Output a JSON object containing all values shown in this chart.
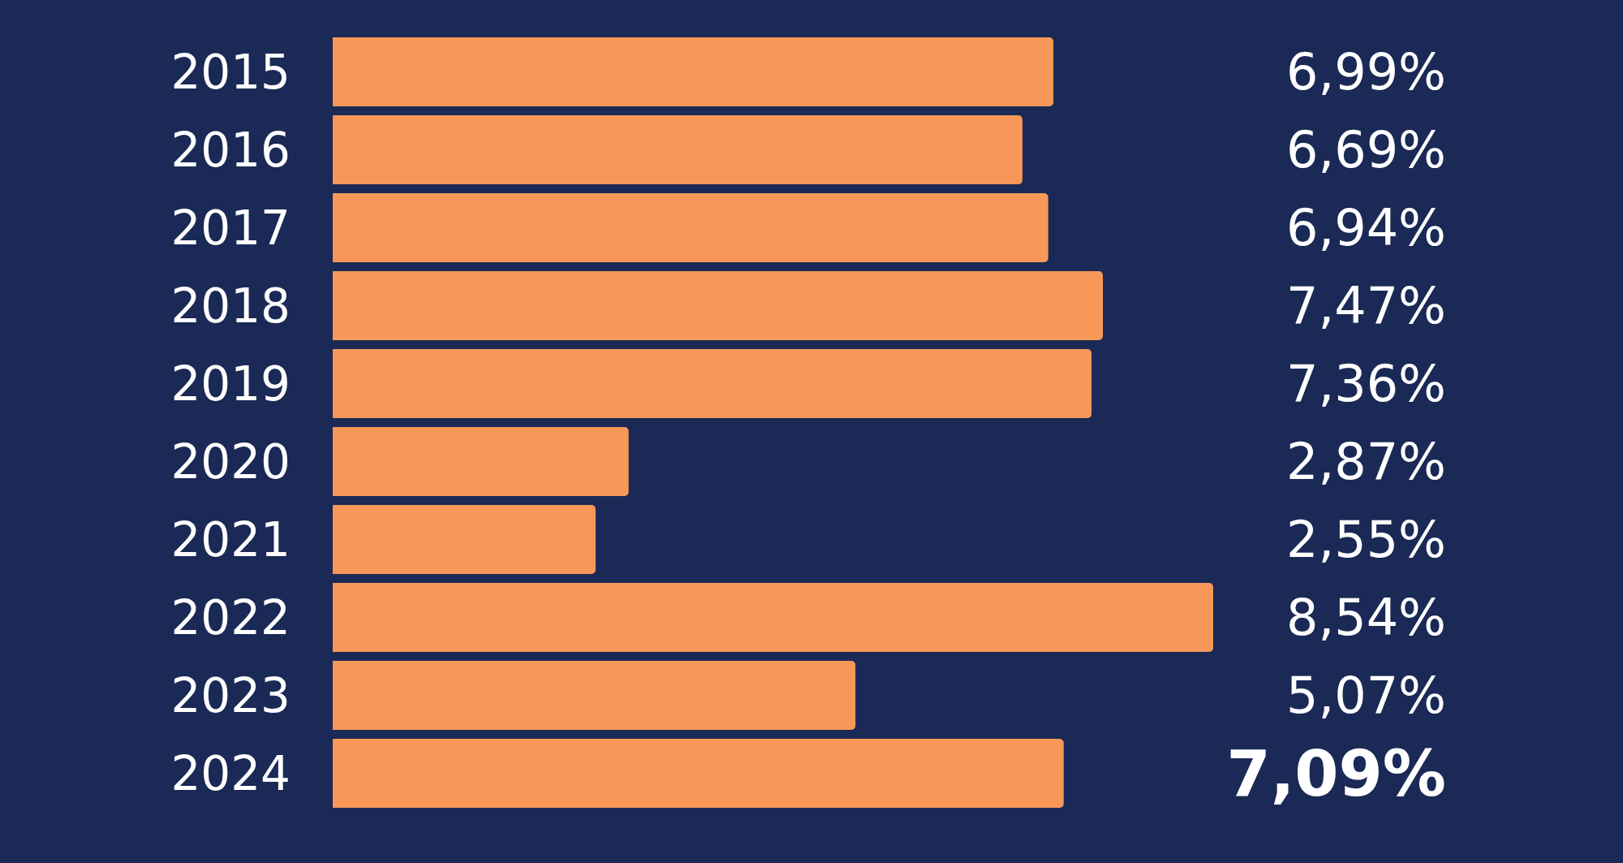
{
  "chart_data": {
    "type": "bar",
    "orientation": "horizontal",
    "categories": [
      "2015",
      "2016",
      "2017",
      "2018",
      "2019",
      "2020",
      "2021",
      "2022",
      "2023",
      "2024"
    ],
    "values": [
      6.99,
      6.69,
      6.94,
      7.47,
      7.36,
      2.87,
      2.55,
      8.54,
      5.07,
      7.09
    ],
    "color": "#f79858",
    "value_labels": [
      "6,99%",
      "6,69%",
      "6,94%",
      "7,47%",
      "7,36%",
      "2,87%",
      "2,55%",
      "8,54%",
      "5,07%",
      "7,09%"
    ],
    "tick_labels": "y"
  }
}
